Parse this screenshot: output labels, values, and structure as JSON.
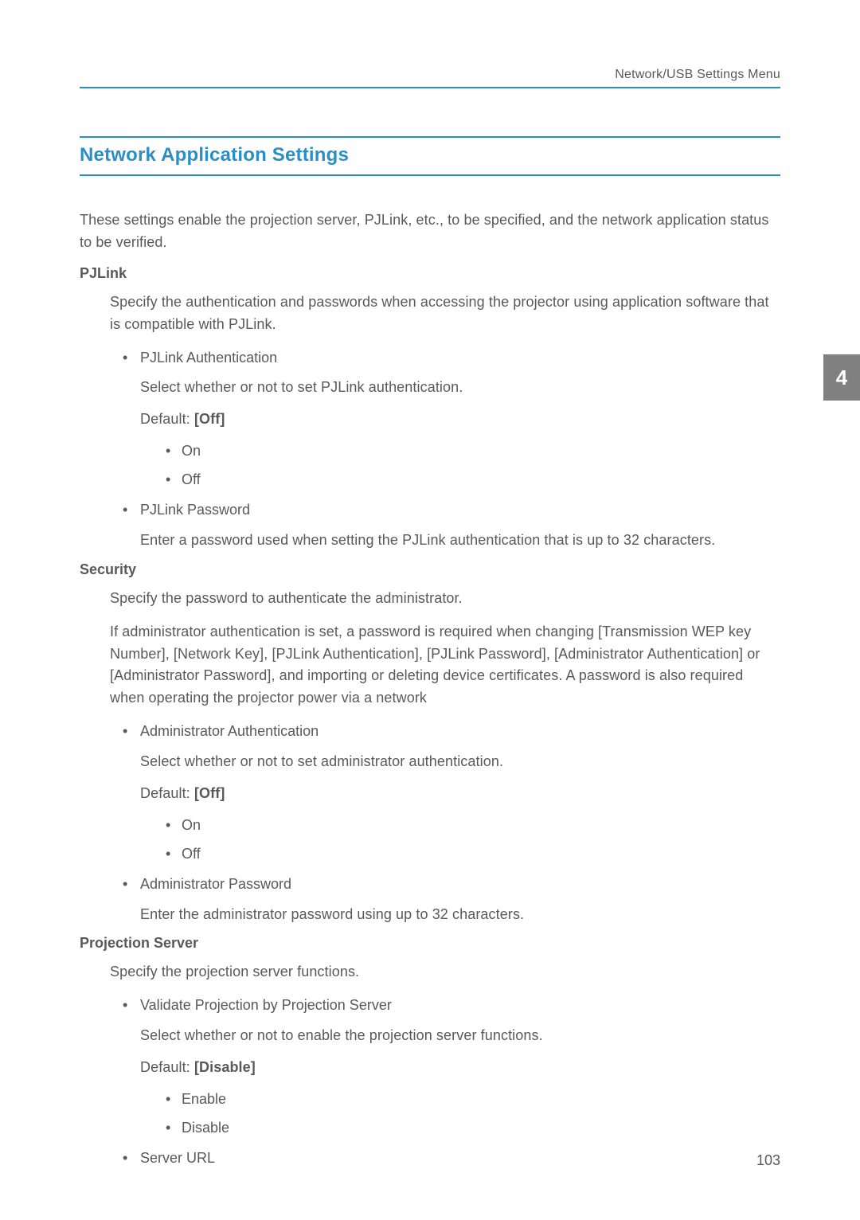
{
  "header": {
    "text": "Network/USB Settings Menu"
  },
  "section_title": "Network Application Settings",
  "intro": "These settings enable the projection server, PJLink, etc., to be specified, and the network application status to be verified.",
  "page_tab": "4",
  "page_number": "103",
  "colors": {
    "accent": "#2a8fc7",
    "text": "#595959",
    "tab_bg": "#808080"
  },
  "sections": [
    {
      "heading": "PJLink",
      "paras": [
        "Specify the authentication and passwords when accessing the projector using application software that is compatible with PJLink."
      ],
      "items": [
        {
          "label": "PJLink Authentication",
          "desc": "Select whether or not to set PJLink authentication.",
          "default_prefix": "Default: ",
          "default_value": "[Off]",
          "options": [
            "On",
            "Off"
          ]
        },
        {
          "label": "PJLink Password",
          "desc": "Enter a password used when setting the PJLink authentication that is up to 32 characters."
        }
      ]
    },
    {
      "heading": "Security",
      "paras": [
        "Specify the password to authenticate the administrator.",
        "If administrator authentication is set, a password is required when changing [Transmission WEP key Number], [Network Key], [PJLink Authentication], [PJLink Password], [Administrator Authentication] or [Administrator Password], and importing or deleting device certificates. A password is also required when operating the projector power via a network"
      ],
      "items": [
        {
          "label": "Administrator Authentication",
          "desc": "Select whether or not to set administrator authentication.",
          "default_prefix": "Default: ",
          "default_value": "[Off]",
          "options": [
            "On",
            "Off"
          ]
        },
        {
          "label": "Administrator Password",
          "desc": "Enter the administrator password using up to 32 characters."
        }
      ]
    },
    {
      "heading": "Projection Server",
      "paras": [
        "Specify the projection server functions."
      ],
      "items": [
        {
          "label": "Validate Projection by Projection Server",
          "desc": "Select whether or not to enable the projection server functions.",
          "default_prefix": "Default: ",
          "default_value": "[Disable]",
          "options": [
            "Enable",
            "Disable"
          ]
        },
        {
          "label": "Server URL"
        }
      ]
    }
  ]
}
